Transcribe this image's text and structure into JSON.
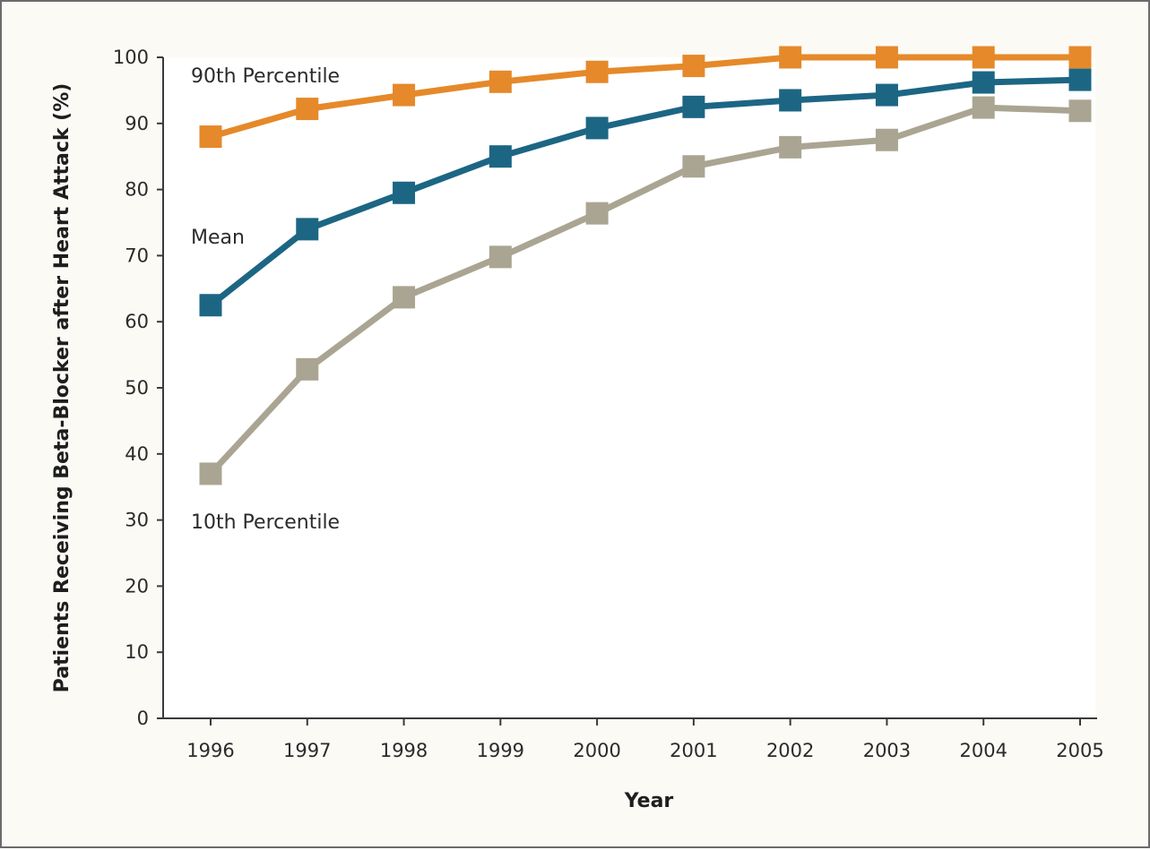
{
  "chart_data": {
    "type": "line",
    "title": "",
    "xlabel": "Year",
    "ylabel": "Patients Receiving Beta-Blocker after Heart Attack (%)",
    "x": [
      "1996",
      "1997",
      "1998",
      "1999",
      "2000",
      "2001",
      "2002",
      "2003",
      "2004",
      "2005"
    ],
    "ylim": [
      0,
      100
    ],
    "yticks": [
      "0",
      "10",
      "20",
      "30",
      "40",
      "50",
      "60",
      "70",
      "80",
      "90",
      "100"
    ],
    "grid": false,
    "marker": "square",
    "series": [
      {
        "name": "90th Percentile",
        "color": "#e5892a",
        "values": [
          88,
          92.2,
          94.3,
          96.3,
          97.8,
          98.7,
          100,
          100,
          100,
          100
        ]
      },
      {
        "name": "Mean",
        "color": "#1c6684",
        "values": [
          62.5,
          74,
          79.5,
          85,
          89.3,
          92.5,
          93.5,
          94.3,
          96.2,
          96.6
        ]
      },
      {
        "name": "10th Percentile",
        "color": "#aaa592",
        "values": [
          37,
          52.8,
          63.7,
          69.8,
          76.4,
          83.5,
          86.4,
          87.5,
          92.4,
          91.9
        ]
      }
    ]
  }
}
